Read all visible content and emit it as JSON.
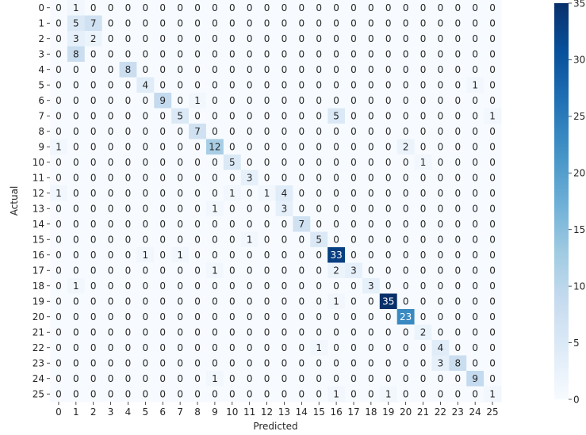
{
  "chart_data": {
    "type": "heatmap",
    "title": "",
    "xlabel": "Predicted",
    "ylabel": "Actual",
    "x_categories": [
      "0",
      "1",
      "2",
      "3",
      "4",
      "5",
      "6",
      "7",
      "8",
      "9",
      "10",
      "11",
      "12",
      "13",
      "14",
      "15",
      "16",
      "17",
      "18",
      "19",
      "20",
      "21",
      "22",
      "23",
      "24",
      "25"
    ],
    "y_categories": [
      "0",
      "1",
      "2",
      "3",
      "4",
      "5",
      "6",
      "7",
      "8",
      "9",
      "10",
      "11",
      "12",
      "13",
      "14",
      "15",
      "16",
      "17",
      "18",
      "19",
      "20",
      "21",
      "22",
      "23",
      "24",
      "25"
    ],
    "values": [
      [
        0,
        1,
        0,
        0,
        0,
        0,
        0,
        0,
        0,
        0,
        0,
        0,
        0,
        0,
        0,
        0,
        0,
        0,
        0,
        0,
        0,
        0,
        0,
        0,
        0,
        0
      ],
      [
        0,
        5,
        7,
        0,
        0,
        0,
        0,
        0,
        0,
        0,
        0,
        0,
        0,
        0,
        0,
        0,
        0,
        0,
        0,
        0,
        0,
        0,
        0,
        0,
        0,
        0
      ],
      [
        0,
        3,
        2,
        0,
        0,
        0,
        0,
        0,
        0,
        0,
        0,
        0,
        0,
        0,
        0,
        0,
        0,
        0,
        0,
        0,
        0,
        0,
        0,
        0,
        0,
        0
      ],
      [
        0,
        8,
        0,
        0,
        0,
        0,
        0,
        0,
        0,
        0,
        0,
        0,
        0,
        0,
        0,
        0,
        0,
        0,
        0,
        0,
        0,
        0,
        0,
        0,
        0,
        0
      ],
      [
        0,
        0,
        0,
        0,
        8,
        0,
        0,
        0,
        0,
        0,
        0,
        0,
        0,
        0,
        0,
        0,
        0,
        0,
        0,
        0,
        0,
        0,
        0,
        0,
        0,
        0
      ],
      [
        0,
        0,
        0,
        0,
        0,
        4,
        0,
        0,
        0,
        0,
        0,
        0,
        0,
        0,
        0,
        0,
        0,
        0,
        0,
        0,
        0,
        0,
        0,
        0,
        1,
        0
      ],
      [
        0,
        0,
        0,
        0,
        0,
        0,
        9,
        0,
        1,
        0,
        0,
        0,
        0,
        0,
        0,
        0,
        0,
        0,
        0,
        0,
        0,
        0,
        0,
        0,
        0,
        0
      ],
      [
        0,
        0,
        0,
        0,
        0,
        0,
        0,
        5,
        0,
        0,
        0,
        0,
        0,
        0,
        0,
        0,
        5,
        0,
        0,
        0,
        0,
        0,
        0,
        0,
        0,
        1
      ],
      [
        0,
        0,
        0,
        0,
        0,
        0,
        0,
        0,
        7,
        0,
        0,
        0,
        0,
        0,
        0,
        0,
        0,
        0,
        0,
        0,
        0,
        0,
        0,
        0,
        0,
        0
      ],
      [
        1,
        0,
        0,
        0,
        0,
        0,
        0,
        0,
        0,
        12,
        0,
        0,
        0,
        0,
        0,
        0,
        0,
        0,
        0,
        0,
        2,
        0,
        0,
        0,
        0,
        0
      ],
      [
        0,
        0,
        0,
        0,
        0,
        0,
        0,
        0,
        0,
        0,
        5,
        0,
        0,
        0,
        0,
        0,
        0,
        0,
        0,
        0,
        0,
        1,
        0,
        0,
        0,
        0
      ],
      [
        0,
        0,
        0,
        0,
        0,
        0,
        0,
        0,
        0,
        0,
        0,
        3,
        0,
        0,
        0,
        0,
        0,
        0,
        0,
        0,
        0,
        0,
        0,
        0,
        0,
        0
      ],
      [
        1,
        0,
        0,
        0,
        0,
        0,
        0,
        0,
        0,
        0,
        1,
        0,
        1,
        4,
        0,
        0,
        0,
        0,
        0,
        0,
        0,
        0,
        0,
        0,
        0,
        0
      ],
      [
        0,
        0,
        0,
        0,
        0,
        0,
        0,
        0,
        0,
        1,
        0,
        0,
        0,
        3,
        0,
        0,
        0,
        0,
        0,
        0,
        0,
        0,
        0,
        0,
        0,
        0
      ],
      [
        0,
        0,
        0,
        0,
        0,
        0,
        0,
        0,
        0,
        0,
        0,
        0,
        0,
        0,
        7,
        0,
        0,
        0,
        0,
        0,
        0,
        0,
        0,
        0,
        0,
        0
      ],
      [
        0,
        0,
        0,
        0,
        0,
        0,
        0,
        0,
        0,
        0,
        0,
        1,
        0,
        0,
        0,
        5,
        0,
        0,
        0,
        0,
        0,
        0,
        0,
        0,
        0,
        0
      ],
      [
        0,
        0,
        0,
        0,
        0,
        1,
        0,
        1,
        0,
        0,
        0,
        0,
        0,
        0,
        0,
        0,
        33,
        0,
        0,
        0,
        0,
        0,
        0,
        0,
        0,
        0
      ],
      [
        0,
        0,
        0,
        0,
        0,
        0,
        0,
        0,
        0,
        1,
        0,
        0,
        0,
        0,
        0,
        0,
        2,
        3,
        0,
        0,
        0,
        0,
        0,
        0,
        0,
        0
      ],
      [
        0,
        1,
        0,
        0,
        0,
        0,
        0,
        0,
        0,
        0,
        0,
        0,
        0,
        0,
        0,
        0,
        0,
        0,
        3,
        0,
        0,
        0,
        0,
        0,
        0,
        0
      ],
      [
        0,
        0,
        0,
        0,
        0,
        0,
        0,
        0,
        0,
        0,
        0,
        0,
        0,
        0,
        0,
        0,
        1,
        0,
        0,
        35,
        0,
        0,
        0,
        0,
        0,
        0
      ],
      [
        0,
        0,
        0,
        0,
        0,
        0,
        0,
        0,
        0,
        0,
        0,
        0,
        0,
        0,
        0,
        0,
        0,
        0,
        0,
        0,
        23,
        0,
        0,
        0,
        0,
        0
      ],
      [
        0,
        0,
        0,
        0,
        0,
        0,
        0,
        0,
        0,
        0,
        0,
        0,
        0,
        0,
        0,
        0,
        0,
        0,
        0,
        0,
        0,
        2,
        0,
        0,
        0,
        0
      ],
      [
        0,
        0,
        0,
        0,
        0,
        0,
        0,
        0,
        0,
        0,
        0,
        0,
        0,
        0,
        0,
        1,
        0,
        0,
        0,
        0,
        0,
        0,
        4,
        0,
        0,
        0
      ],
      [
        0,
        0,
        0,
        0,
        0,
        0,
        0,
        0,
        0,
        0,
        0,
        0,
        0,
        0,
        0,
        0,
        0,
        0,
        0,
        0,
        0,
        0,
        3,
        8,
        0,
        0
      ],
      [
        0,
        0,
        0,
        0,
        0,
        0,
        0,
        0,
        0,
        1,
        0,
        0,
        0,
        0,
        0,
        0,
        0,
        0,
        0,
        0,
        0,
        0,
        0,
        0,
        9,
        0
      ],
      [
        0,
        0,
        0,
        0,
        0,
        0,
        0,
        0,
        0,
        0,
        0,
        0,
        0,
        0,
        0,
        0,
        1,
        0,
        0,
        1,
        0,
        0,
        0,
        0,
        0,
        1
      ]
    ],
    "colormap": "Blues",
    "value_range": [
      0,
      35
    ],
    "colorbar_ticks": [
      0,
      5,
      10,
      15,
      20,
      25,
      30,
      35
    ],
    "grid": false,
    "legend": "colorbar-right"
  }
}
